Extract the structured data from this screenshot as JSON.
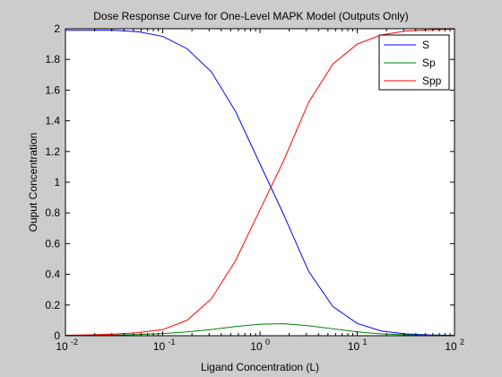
{
  "colors": {
    "figure_background": "#cccccc",
    "axes_background": "#ffffff",
    "axes_line": "#000000"
  },
  "chart_data": {
    "type": "line",
    "title": "Dose Response Curve for One-Level MAPK Model (Outputs Only)",
    "xlabel": "Ligand Concentration (L)",
    "ylabel": "Ouput Concentration",
    "xscale": "log",
    "xlim": [
      0.01,
      100
    ],
    "ylim": [
      0,
      2
    ],
    "xticks": [
      {
        "value": 0.01,
        "base": "10",
        "exp": "-2"
      },
      {
        "value": 0.1,
        "base": "10",
        "exp": "-1"
      },
      {
        "value": 1,
        "base": "10",
        "exp": "0"
      },
      {
        "value": 10,
        "base": "10",
        "exp": "1"
      },
      {
        "value": 100,
        "base": "10",
        "exp": "2"
      }
    ],
    "yticks": [
      "0",
      "0.2",
      "0.4",
      "0.6",
      "0.8",
      "1",
      "1.2",
      "1.4",
      "1.6",
      "1.8",
      "2"
    ],
    "grid": false,
    "legend_position": "top-right",
    "x": [
      0.01,
      0.0178,
      0.0316,
      0.0562,
      0.1,
      0.178,
      0.316,
      0.562,
      1,
      1.78,
      3.16,
      5.62,
      10,
      17.8,
      31.6,
      56.2,
      100
    ],
    "series": [
      {
        "name": "S",
        "color": "#0000ff",
        "values": [
          1.99,
          1.99,
          1.99,
          1.98,
          1.95,
          1.87,
          1.72,
          1.46,
          1.12,
          0.78,
          0.42,
          0.19,
          0.08,
          0.03,
          0.012,
          0.005,
          0.002
        ]
      },
      {
        "name": "Sp",
        "color": "#008000",
        "values": [
          0.001,
          0.002,
          0.004,
          0.008,
          0.014,
          0.025,
          0.04,
          0.06,
          0.075,
          0.078,
          0.065,
          0.045,
          0.025,
          0.012,
          0.006,
          0.003,
          0.001
        ]
      },
      {
        "name": "Spp",
        "color": "#ff0000",
        "values": [
          0.003,
          0.006,
          0.01,
          0.02,
          0.04,
          0.1,
          0.24,
          0.49,
          0.82,
          1.15,
          1.52,
          1.77,
          1.9,
          1.96,
          1.985,
          1.993,
          1.997
        ]
      }
    ]
  }
}
